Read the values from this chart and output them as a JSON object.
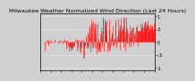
{
  "title": "Milwaukee Weather Normalized Wind Direction (Last 24 Hours)",
  "bg_color": "#d0d0d0",
  "plot_bg_color": "#d0d0d0",
  "bar_color": "#ff0000",
  "ylim": [
    -1.1,
    1.1
  ],
  "xlim": [
    0,
    288
  ],
  "yticks": [
    -1.0,
    -0.5,
    0.0,
    0.5,
    1.0
  ],
  "ytick_labels": [
    "-1",
    "-.5",
    "0",
    ".5",
    "1"
  ],
  "grid_color": "#ffffff",
  "title_fontsize": 4.5,
  "tick_fontsize": 3.5,
  "n_points": 288
}
